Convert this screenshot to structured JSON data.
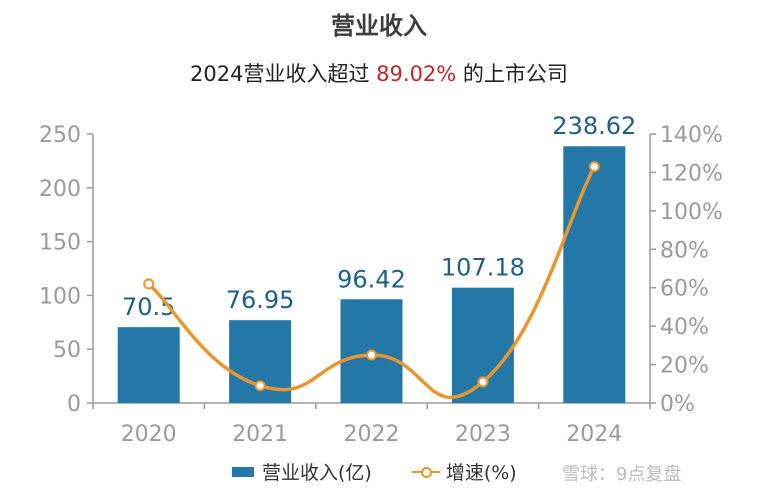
{
  "title": "营业收入",
  "subtitle": {
    "prefix": "2024营业收入超过 ",
    "highlight": "89.02%",
    "suffix": " 的上市公司"
  },
  "legend": {
    "bar_label": "营业收入(亿)",
    "line_label": "增速(%)"
  },
  "watermark": "雪球：9点复盘",
  "colors": {
    "bar": "#2378a8",
    "line": "#e8962f",
    "axis_text": "#9a9a9a",
    "highlight": "#c0272d"
  },
  "chart_data": {
    "type": "bar",
    "categories": [
      "2020",
      "2021",
      "2022",
      "2023",
      "2024"
    ],
    "series": [
      {
        "name": "营业收入(亿)",
        "type": "bar",
        "axis": "left",
        "values": [
          70.5,
          76.95,
          96.42,
          107.18,
          238.62
        ],
        "labels": [
          "70.5",
          "76.95",
          "96.42",
          "107.18",
          "238.62"
        ]
      },
      {
        "name": "增速(%)",
        "type": "line",
        "axis": "right",
        "smooth": true,
        "values": [
          62,
          9,
          25,
          11,
          123
        ]
      }
    ],
    "y_left": {
      "min": 0,
      "max": 250,
      "ticks": [
        "0",
        "50",
        "100",
        "150",
        "200",
        "250"
      ]
    },
    "y_right": {
      "min": 0,
      "max": 140,
      "ticks": [
        "0%",
        "20%",
        "40%",
        "60%",
        "80%",
        "100%",
        "120%",
        "140%"
      ]
    },
    "grid": false,
    "legend_position": "bottom"
  }
}
